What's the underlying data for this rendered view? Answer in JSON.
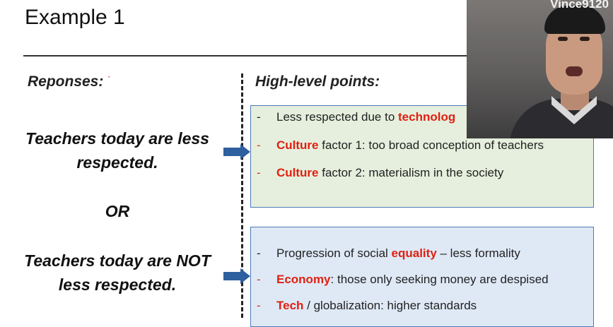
{
  "slide": {
    "title": "Example 1",
    "responses_heading": "Reponses:",
    "points_heading": "High-level points:",
    "statement_1": [
      "Teachers today are less",
      "respected."
    ],
    "or_label": "OR",
    "statement_2": [
      "Teachers today are NOT",
      "less respected."
    ]
  },
  "box_green": {
    "bullets": [
      {
        "dash": "-",
        "before": "Less respected due to ",
        "keyword": "technolog",
        "after": ""
      },
      {
        "dash": "-",
        "before": "",
        "keyword": "Culture",
        "after": " factor 1: too broad conception of teachers"
      },
      {
        "dash": "-",
        "before": "",
        "keyword": "Culture",
        "after": " factor 2: materialism in the society"
      }
    ]
  },
  "box_blue": {
    "bullets": [
      {
        "dash": "-",
        "before": "Progression of social ",
        "keyword": "equality",
        "after": " – less formality"
      },
      {
        "dash": "-",
        "before": "",
        "keyword": "Economy",
        "after": ": those only seeking money are despised"
      },
      {
        "dash": "-",
        "before": "",
        "keyword": "Tech",
        "after": " / globalization: higher standards"
      }
    ]
  },
  "webcam": {
    "name": "Vince9120"
  },
  "colors": {
    "keyword": "#e02010",
    "arrow": "#2e5f9e",
    "green_box": "#e6efdd",
    "blue_box": "#dfe9f6"
  }
}
